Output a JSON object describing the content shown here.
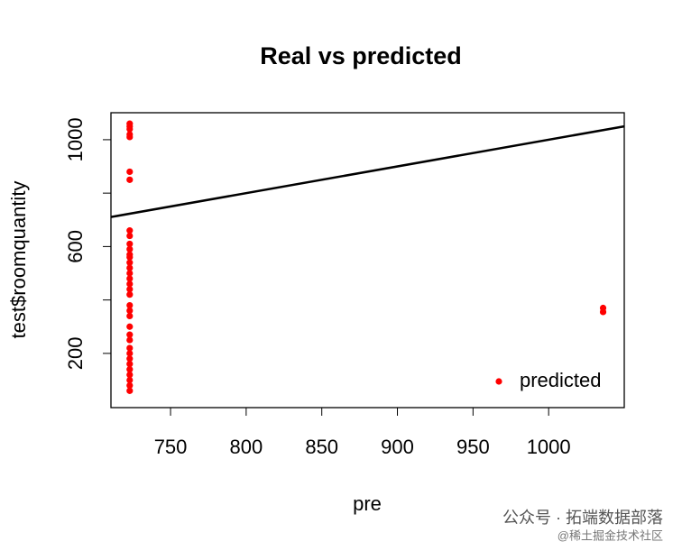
{
  "chart_data": {
    "type": "scatter",
    "title": "Real vs predicted",
    "x_label": "pre",
    "y_label": "test$roomquantity",
    "series": [
      {
        "name": "predicted",
        "color": "#ff0000",
        "x": [
          723,
          723,
          723,
          723,
          723,
          723,
          723,
          723,
          723,
          723,
          723,
          723,
          723,
          723,
          723,
          723,
          723,
          723,
          723,
          723,
          723,
          723,
          723,
          723,
          723,
          723,
          723,
          723,
          723,
          723,
          723,
          723,
          723,
          723,
          723,
          1036,
          1036
        ],
        "values": [
          1060,
          1050,
          1040,
          1020,
          1010,
          880,
          850,
          660,
          640,
          610,
          590,
          570,
          560,
          540,
          520,
          500,
          480,
          460,
          440,
          420,
          380,
          360,
          340,
          300,
          270,
          250,
          220,
          200,
          180,
          160,
          140,
          120,
          100,
          80,
          60,
          370,
          355
        ]
      }
    ],
    "reference_line": {
      "intercept": 0,
      "slope": 1,
      "color": "#000000"
    },
    "xlim": [
      710.6,
      1050
    ],
    "ylim": [
      -3,
      1101
    ],
    "xticks": [
      750,
      800,
      850,
      900,
      950,
      1000
    ],
    "yticks": [
      200,
      600,
      1000
    ],
    "yminor_ticks": [
      400,
      800
    ],
    "legend": "bottom-right",
    "watermark": [
      "公众号 · 拓端数据部落",
      "@稀土掘金技术社区"
    ]
  }
}
